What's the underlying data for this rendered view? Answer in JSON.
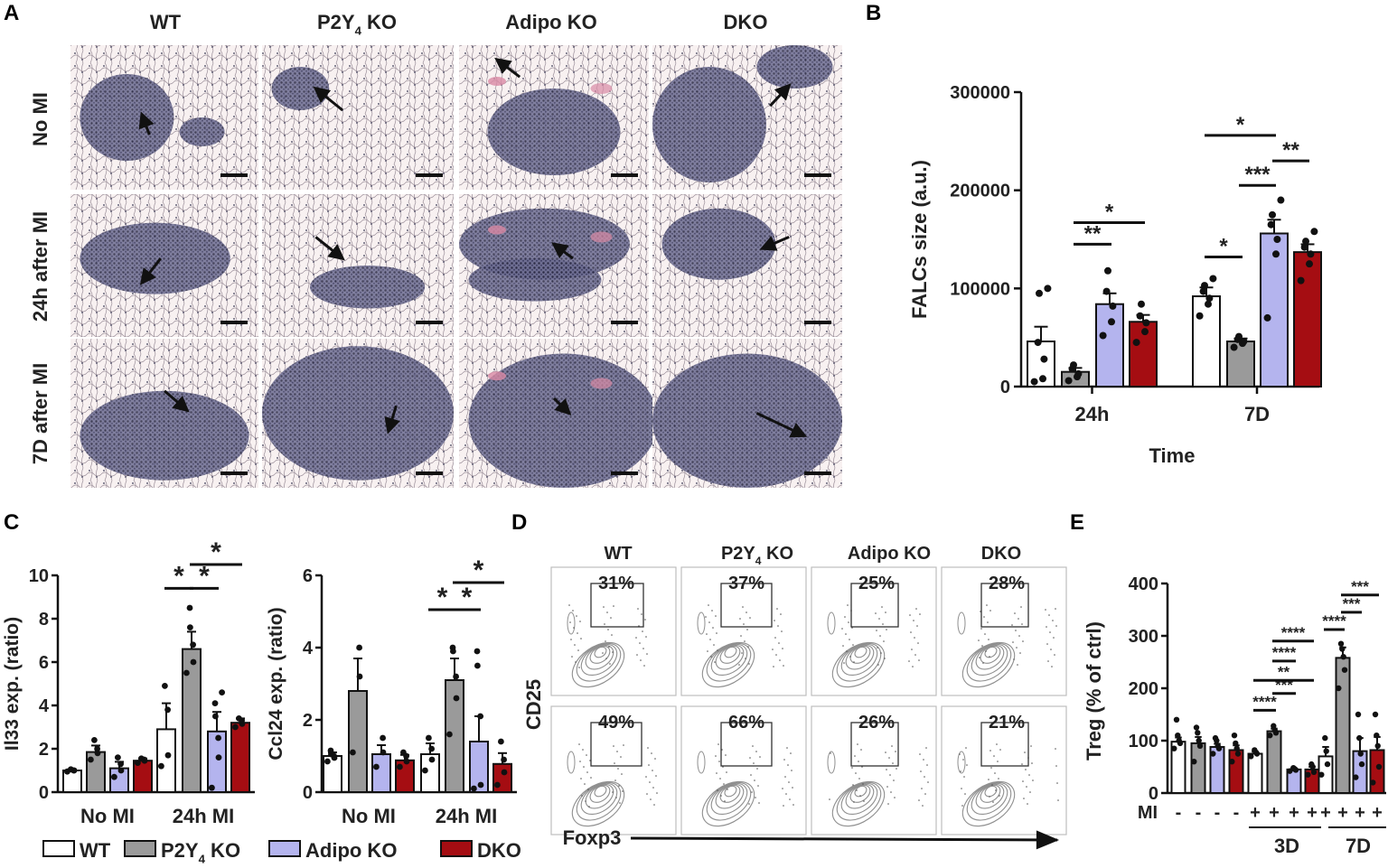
{
  "panel_letters": {
    "A": "A",
    "B": "B",
    "C": "C",
    "D": "D",
    "E": "E"
  },
  "colors": {
    "wt": "#ffffff",
    "p2y4": "#9a9a9a",
    "adipo": "#b4b4ee",
    "dko": "#a50d12",
    "tissue": "#f6eeee",
    "dense": "#4a4a72"
  },
  "panel_a": {
    "columns": [
      {
        "pre": "WT",
        "sub": "",
        "post": ""
      },
      {
        "pre": "P2Y",
        "sub": "4",
        "post": " KO"
      },
      {
        "pre": "Adipo KO",
        "sub": "",
        "post": ""
      },
      {
        "pre": "DKO",
        "sub": "",
        "post": ""
      }
    ],
    "rows": [
      "No MI",
      "24h after MI",
      "7D after MI"
    ]
  },
  "panel_b": {
    "chart_data": {
      "type": "bar",
      "ylabel": "FALCs size (a.u.)",
      "xlabel": "Time",
      "categories": [
        "24h",
        "7D"
      ],
      "yticks": [
        "0",
        "100000",
        "200000",
        "300000"
      ],
      "ylim": [
        0,
        300000
      ],
      "series": [
        {
          "key": "wt",
          "values": [
            46000,
            92000
          ],
          "err": [
            15000,
            9000
          ],
          "points": [
            [
              5000,
              8000,
              28000,
              45000,
              95000,
              100000
            ],
            [
              72000,
              84000,
              90000,
              97000,
              103000,
              110000
            ]
          ]
        },
        {
          "key": "p2y4",
          "values": [
            15000,
            46000
          ],
          "err": [
            4000,
            3000
          ],
          "points": [
            [
              6000,
              10000,
              13000,
              18000,
              22000
            ],
            [
              40000,
              44000,
              46000,
              48000,
              51000
            ]
          ]
        },
        {
          "key": "adipo",
          "values": [
            84000,
            156000
          ],
          "err": [
            11000,
            14000
          ],
          "points": [
            [
              52000,
              66000,
              82000,
              97000,
              118000
            ],
            [
              70000,
              135000,
              150000,
              165000,
              175000,
              190000
            ]
          ]
        },
        {
          "key": "dko",
          "values": [
            66000,
            137000
          ],
          "err": [
            7000,
            8000
          ],
          "points": [
            [
              45000,
              56000,
              65000,
              72000,
              84000
            ],
            [
              108000,
              125000,
              135000,
              142000,
              148000,
              158000
            ]
          ]
        }
      ],
      "significance": [
        {
          "group": 0,
          "from": 1,
          "to": 2,
          "level": 145000,
          "label": "**"
        },
        {
          "group": 0,
          "from": 1,
          "to": 3,
          "level": 167000,
          "label": "*"
        },
        {
          "group": 1,
          "from": 0,
          "to": 1,
          "level": 132000,
          "label": "*"
        },
        {
          "group": 1,
          "from": 1,
          "to": 2,
          "level": 205000,
          "label": "***"
        },
        {
          "group": 1,
          "from": 2,
          "to": 3,
          "level": 230000,
          "label": "**"
        },
        {
          "group": 1,
          "from": 0,
          "to": 2,
          "level": 256000,
          "label": "*"
        }
      ]
    }
  },
  "panel_c": {
    "chart_data": [
      {
        "type": "bar",
        "ylabel": "Il33 exp. (ratio)",
        "categories": [
          "No MI",
          "24h MI"
        ],
        "yticks": [
          "0",
          "2",
          "4",
          "6",
          "8",
          "10"
        ],
        "ylim": [
          0,
          10
        ],
        "series": [
          {
            "key": "wt",
            "values": [
              1.0,
              2.9
            ],
            "err": [
              0.05,
              1.2
            ],
            "points": [
              [
                0.95,
                1.0,
                1.0,
                1.05
              ],
              [
                1.2,
                1.7,
                3.8,
                4.9
              ]
            ]
          },
          {
            "key": "p2y4",
            "values": [
              1.85,
              6.6
            ],
            "err": [
              0.3,
              0.8
            ],
            "points": [
              [
                1.5,
                1.8,
                2.0,
                2.4
              ],
              [
                5.5,
                6.0,
                6.8,
                7.6,
                8.5
              ]
            ]
          },
          {
            "key": "adipo",
            "values": [
              1.1,
              2.8
            ],
            "err": [
              0.3,
              0.9
            ],
            "points": [
              [
                0.7,
                1.0,
                1.3,
                1.6
              ],
              [
                0.2,
                1.6,
                2.5,
                3.5,
                4.1,
                4.6
              ]
            ]
          },
          {
            "key": "dko",
            "values": [
              1.45,
              3.2
            ],
            "err": [
              0.1,
              0.2
            ],
            "points": [
              [
                1.35,
                1.45,
                1.5,
                1.55
              ],
              [
                3.0,
                3.15,
                3.3,
                3.4
              ]
            ]
          }
        ],
        "significance": [
          {
            "group": 1,
            "from": 0,
            "to": 1,
            "level": 9.4,
            "label": "*"
          },
          {
            "group": 1,
            "from": 1,
            "to": 2,
            "level": 9.4,
            "label": "*"
          },
          {
            "group": 1,
            "from": 1,
            "to": 3,
            "level": 10.5,
            "label": "*"
          }
        ]
      },
      {
        "type": "bar",
        "ylabel": "Ccl24 exp. (ratio)",
        "categories": [
          "No MI",
          "24h MI"
        ],
        "yticks": [
          "0",
          "2",
          "4",
          "6"
        ],
        "ylim": [
          0,
          6
        ],
        "series": [
          {
            "key": "wt",
            "values": [
              1.0,
              1.05
            ],
            "err": [
              0.1,
              0.3
            ],
            "points": [
              [
                0.85,
                0.95,
                1.0,
                1.05,
                1.15
              ],
              [
                0.6,
                0.9,
                1.2,
                1.5
              ]
            ]
          },
          {
            "key": "p2y4",
            "values": [
              2.8,
              3.1
            ],
            "err": [
              0.9,
              0.6
            ],
            "points": [
              [
                1.1,
                3.2,
                4.0
              ],
              [
                1.6,
                2.6,
                3.2,
                3.9,
                4.0
              ]
            ]
          },
          {
            "key": "adipo",
            "values": [
              1.05,
              1.4
            ],
            "err": [
              0.25,
              0.7
            ],
            "points": [
              [
                0.7,
                1.1,
                1.5
              ],
              [
                0.1,
                0.2,
                2.1,
                3.5,
                3.9
              ]
            ]
          },
          {
            "key": "dko",
            "values": [
              0.88,
              0.78
            ],
            "err": [
              0.15,
              0.3
            ],
            "points": [
              [
                0.7,
                0.85,
                1.0,
                1.1
              ],
              [
                0.2,
                0.55,
                0.9,
                1.4
              ]
            ]
          }
        ],
        "significance": [
          {
            "group": 1,
            "from": 0,
            "to": 1,
            "level": 5.05,
            "label": "*"
          },
          {
            "group": 1,
            "from": 1,
            "to": 2,
            "level": 5.05,
            "label": "*"
          },
          {
            "group": 1,
            "from": 1,
            "to": 3,
            "level": 5.8,
            "label": "*"
          }
        ]
      }
    ],
    "legend": [
      {
        "key": "wt",
        "pre": "WT",
        "sub": "",
        "post": ""
      },
      {
        "key": "p2y4",
        "pre": "P2Y",
        "sub": "4",
        "post": " KO"
      },
      {
        "key": "adipo",
        "pre": "Adipo KO",
        "sub": "",
        "post": ""
      },
      {
        "key": "dko",
        "pre": "DKO",
        "sub": "",
        "post": ""
      }
    ]
  },
  "panel_d": {
    "columns": [
      {
        "pre": "WT",
        "sub": "",
        "post": ""
      },
      {
        "pre": "P2Y",
        "sub": "4",
        "post": " KO"
      },
      {
        "pre": "Adipo KO",
        "sub": "",
        "post": ""
      },
      {
        "pre": "DKO",
        "sub": "",
        "post": ""
      }
    ],
    "percents": [
      [
        "31%",
        "37%",
        "25%",
        "28%"
      ],
      [
        "49%",
        "66%",
        "26%",
        "21%"
      ]
    ],
    "ylabel": "CD25",
    "xlabel": "Foxp3"
  },
  "panel_e": {
    "chart_data": {
      "type": "bar",
      "ylabel": "Treg  (% of ctrl)",
      "yticks": [
        "0",
        "100",
        "200",
        "300",
        "400"
      ],
      "ylim": [
        0,
        400
      ],
      "mi_label": "MI",
      "mi_signs": [
        "-",
        "-",
        "-",
        "-",
        "+",
        "+",
        "+",
        "+",
        "+",
        "+",
        "+",
        "+"
      ],
      "timepoints": [
        "3D",
        "7D"
      ],
      "bars": [
        {
          "key": "wt",
          "value": 98,
          "err": 8,
          "points": [
            85,
            95,
            100,
            110,
            140
          ]
        },
        {
          "key": "p2y4",
          "value": 95,
          "err": 12,
          "points": [
            60,
            90,
            100,
            115,
            125
          ]
        },
        {
          "key": "adipo",
          "value": 88,
          "err": 6,
          "points": [
            75,
            85,
            90,
            100,
            105
          ]
        },
        {
          "key": "dko",
          "value": 82,
          "err": 9,
          "points": [
            60,
            75,
            85,
            95,
            110
          ]
        },
        {
          "key": "wt",
          "value": 75,
          "err": 4,
          "points": [
            70,
            75,
            78,
            82
          ]
        },
        {
          "key": "p2y4",
          "value": 118,
          "err": 5,
          "points": [
            110,
            115,
            120,
            128
          ]
        },
        {
          "key": "adipo",
          "value": 45,
          "err": 2,
          "points": [
            42,
            44,
            46,
            48
          ]
        },
        {
          "key": "dko",
          "value": 45,
          "err": 5,
          "points": [
            35,
            40,
            50,
            55
          ]
        },
        {
          "key": "wt",
          "value": 70,
          "err": 18,
          "points": [
            35,
            55,
            80,
            105
          ]
        },
        {
          "key": "p2y4",
          "value": 258,
          "err": 20,
          "points": [
            200,
            235,
            260,
            275,
            285
          ]
        },
        {
          "key": "adipo",
          "value": 80,
          "err": 25,
          "points": [
            30,
            55,
            75,
            105,
            150
          ]
        },
        {
          "key": "dko",
          "value": 82,
          "err": 25,
          "points": [
            20,
            50,
            90,
            110,
            150
          ]
        }
      ],
      "significance": [
        {
          "from": 4,
          "to": 5,
          "level": 158,
          "label": "****"
        },
        {
          "from": 5,
          "to": 6,
          "level": 190,
          "label": "***"
        },
        {
          "from": 4,
          "to": 7,
          "level": 215,
          "label": "**"
        },
        {
          "from": 5,
          "to": 6,
          "level": 252,
          "label": "****"
        },
        {
          "from": 5,
          "to": 7,
          "level": 290,
          "label": "****"
        },
        {
          "from": 8,
          "to": 9,
          "level": 312,
          "label": "****"
        },
        {
          "from": 9,
          "to": 10,
          "level": 345,
          "label": "***"
        },
        {
          "from": 9,
          "to": 11,
          "level": 378,
          "label": "***"
        }
      ]
    }
  }
}
